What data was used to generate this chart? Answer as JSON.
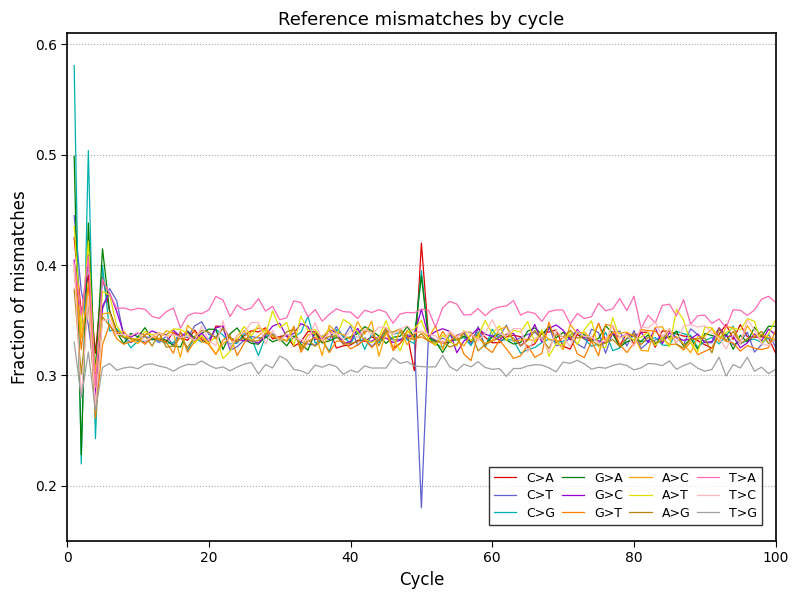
{
  "title": "Reference mismatches by cycle",
  "xlabel": "Cycle",
  "ylabel": "Fraction of mismatches",
  "xlim": [
    0,
    100
  ],
  "ylim": [
    0.15,
    0.61
  ],
  "yticks": [
    0.2,
    0.3,
    0.4,
    0.5,
    0.6
  ],
  "xticks": [
    0,
    20,
    40,
    60,
    80,
    100
  ],
  "n_cycles": 100,
  "series": [
    {
      "label": "C>A",
      "color": "#e00000",
      "base": 0.335,
      "noise": 0.006,
      "early_swings": [
        0.43,
        0.36,
        0.4,
        0.32,
        0.39,
        0.36,
        0.34,
        0.335,
        0.333,
        0.334,
        0.334,
        0.333,
        0.334,
        0.334
      ],
      "spike49": 0.305,
      "spike50": 0.42,
      "spike51": 0.338
    },
    {
      "label": "C>T",
      "color": "#6060d0",
      "base": 0.333,
      "noise": 0.006,
      "early_swings": [
        0.44,
        0.38,
        0.35,
        0.3,
        0.36,
        0.38,
        0.37,
        0.335,
        0.332,
        0.334,
        0.333,
        0.333,
        0.333,
        0.333
      ],
      "spike49": 0.335,
      "spike50": 0.18,
      "spike51": 0.335
    },
    {
      "label": "C>G",
      "color": "#00b0b0",
      "base": 0.333,
      "noise": 0.006,
      "early_swings": [
        0.58,
        0.22,
        0.5,
        0.24,
        0.4,
        0.34,
        0.34,
        0.332,
        0.333,
        0.332,
        0.333,
        0.333,
        0.333,
        0.332
      ],
      "spike49": 0.332,
      "spike50": 0.395,
      "spike51": 0.333
    },
    {
      "label": "G>A",
      "color": "#008000",
      "base": 0.334,
      "noise": 0.006,
      "early_swings": [
        0.5,
        0.23,
        0.44,
        0.3,
        0.41,
        0.36,
        0.34,
        0.334,
        0.334,
        0.334,
        0.334,
        0.334,
        0.334,
        0.334
      ],
      "spike49": 0.334,
      "spike50": 0.39,
      "spike51": 0.334
    },
    {
      "label": "G>C",
      "color": "#9400d3",
      "base": 0.336,
      "noise": 0.007,
      "early_swings": [
        0.41,
        0.34,
        0.41,
        0.29,
        0.36,
        0.37,
        0.355,
        0.336,
        0.336,
        0.336,
        0.336,
        0.336,
        0.336,
        0.336
      ],
      "spike49": 0.336,
      "spike50": 0.36,
      "spike51": 0.336
    },
    {
      "label": "G>T",
      "color": "#ff8000",
      "base": 0.33,
      "noise": 0.007,
      "early_swings": [
        0.4,
        0.32,
        0.39,
        0.26,
        0.33,
        0.35,
        0.335,
        0.33,
        0.33,
        0.33,
        0.33,
        0.33,
        0.33,
        0.33
      ],
      "spike49": 0.33,
      "spike50": 0.335,
      "spike51": 0.33
    },
    {
      "label": "A>C",
      "color": "#ffa500",
      "base": 0.336,
      "noise": 0.008,
      "early_swings": [
        0.39,
        0.33,
        0.38,
        0.3,
        0.36,
        0.355,
        0.34,
        0.336,
        0.336,
        0.336,
        0.336,
        0.336,
        0.336,
        0.336
      ],
      "spike49": 0.336,
      "spike50": 0.34,
      "spike51": 0.336
    },
    {
      "label": "A>T",
      "color": "#e0e000",
      "base": 0.337,
      "noise": 0.009,
      "early_swings": [
        0.44,
        0.34,
        0.42,
        0.29,
        0.38,
        0.365,
        0.35,
        0.337,
        0.337,
        0.337,
        0.337,
        0.337,
        0.337,
        0.337
      ],
      "spike49": 0.337,
      "spike50": 0.35,
      "spike51": 0.337
    },
    {
      "label": "A>G",
      "color": "#b8860b",
      "base": 0.332,
      "noise": 0.006,
      "early_swings": [
        0.38,
        0.3,
        0.37,
        0.27,
        0.35,
        0.345,
        0.335,
        0.332,
        0.332,
        0.332,
        0.332,
        0.332,
        0.332,
        0.332
      ],
      "spike49": 0.332,
      "spike50": 0.338,
      "spike51": 0.332
    },
    {
      "label": "T>A",
      "color": "#ff69b4",
      "base": 0.357,
      "noise": 0.008,
      "early_swings": [
        0.4,
        0.35,
        0.41,
        0.29,
        0.38,
        0.375,
        0.365,
        0.357,
        0.357,
        0.357,
        0.357,
        0.357,
        0.357,
        0.357
      ],
      "spike49": 0.357,
      "spike50": 0.36,
      "spike51": 0.357
    },
    {
      "label": "T>C",
      "color": "#ffb6c1",
      "base": 0.337,
      "noise": 0.007,
      "early_swings": [
        0.4,
        0.28,
        0.37,
        0.27,
        0.35,
        0.35,
        0.34,
        0.337,
        0.337,
        0.337,
        0.337,
        0.337,
        0.337,
        0.337
      ],
      "spike49": 0.337,
      "spike50": 0.34,
      "spike51": 0.337
    },
    {
      "label": "T>G",
      "color": "#a0a0a0",
      "base": 0.308,
      "noise": 0.004,
      "early_swings": [
        0.33,
        0.28,
        0.32,
        0.27,
        0.31,
        0.31,
        0.308,
        0.308,
        0.308,
        0.308,
        0.308,
        0.308,
        0.308,
        0.308
      ],
      "spike49": 0.308,
      "spike50": 0.308,
      "spike51": 0.308
    }
  ],
  "figsize": [
    8.0,
    6.0
  ],
  "dpi": 100,
  "bg_color": "#ffffff"
}
